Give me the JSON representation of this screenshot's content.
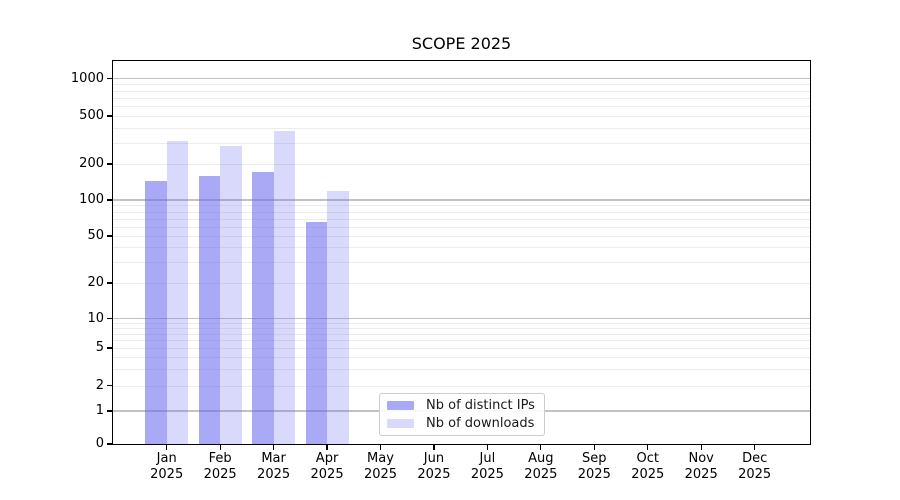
{
  "title": "SCOPE 2025",
  "legend": {
    "items": [
      {
        "label": "Nb of distinct IPs",
        "color": "rgba(102,102,238,0.56)"
      },
      {
        "label": "Nb of downloads",
        "color": "rgba(102,102,238,0.25)"
      }
    ]
  },
  "axes": {
    "y_tick_labels": [
      "1000",
      "500",
      "200",
      "100",
      "50",
      "20",
      "10",
      "5",
      "2",
      "1",
      "0"
    ],
    "x_months": [
      "Jan",
      "Feb",
      "Mar",
      "Apr",
      "May",
      "Jun",
      "Jul",
      "Aug",
      "Sep",
      "Oct",
      "Nov",
      "Dec"
    ],
    "x_year": "2025"
  },
  "colors": {
    "bar_base": "#6666ee",
    "distinct_ips_fill": "rgba(102,102,238,0.56)",
    "downloads_fill": "rgba(102,102,238,0.25)",
    "major_gridline": "#c2c2c2",
    "minor_gridline": "#ececec",
    "axis_line": "#000000",
    "text": "#1a1a1a"
  },
  "chart_data": {
    "type": "bar",
    "title": "SCOPE 2025",
    "categories": [
      "Jan 2025",
      "Feb 2025",
      "Mar 2025",
      "Apr 2025",
      "May 2025",
      "Jun 2025",
      "Jul 2025",
      "Aug 2025",
      "Sep 2025",
      "Oct 2025",
      "Nov 2025",
      "Dec 2025"
    ],
    "series": [
      {
        "name": "Nb of distinct IPs",
        "values": [
          145,
          160,
          170,
          65,
          null,
          null,
          null,
          null,
          null,
          null,
          null,
          null
        ]
      },
      {
        "name": "Nb of downloads",
        "values": [
          310,
          280,
          375,
          120,
          null,
          null,
          null,
          null,
          null,
          null,
          null,
          null
        ]
      }
    ],
    "xlabel": "",
    "ylabel": "",
    "yscale": "log (symlog-like, linear segment 0-1)",
    "yticks": [
      0,
      1,
      2,
      5,
      10,
      20,
      50,
      100,
      200,
      500,
      1000
    ],
    "ylim": [
      0,
      1400
    ],
    "grid": "horizontal major and log-minor gridlines",
    "legend_position": "inside lower center"
  }
}
